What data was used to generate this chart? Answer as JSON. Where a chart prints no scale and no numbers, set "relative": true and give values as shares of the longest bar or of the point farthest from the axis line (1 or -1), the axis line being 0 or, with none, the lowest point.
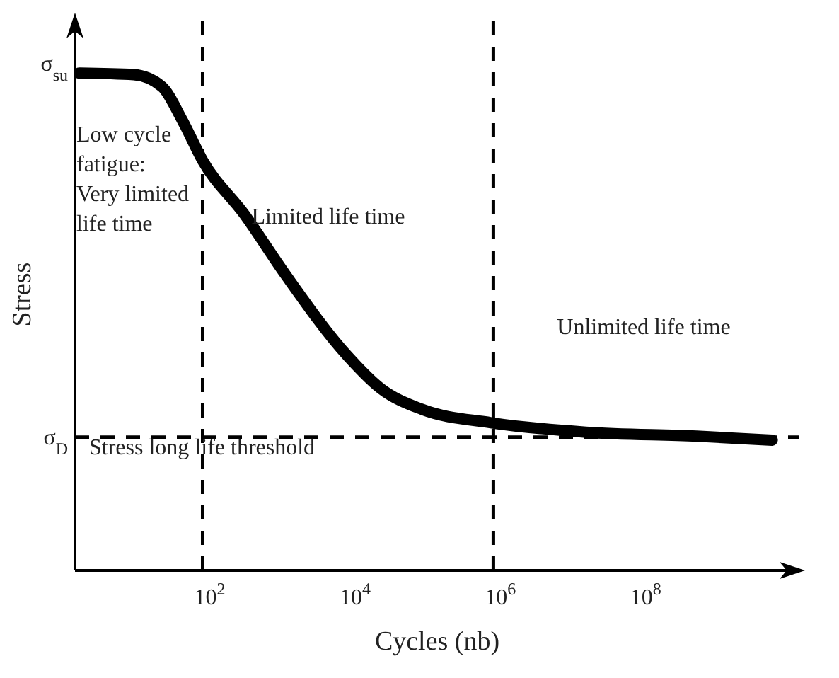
{
  "chart_data": {
    "type": "line",
    "relative": true,
    "log": "x",
    "xlabel": "Cycles (nb)",
    "ylabel": "Stress",
    "xlim": [
      1.4,
      13000000000
    ],
    "xticks": [
      {
        "value": 100,
        "label": "10$^{2}$"
      },
      {
        "value": 10000,
        "label": "10$^{4}$"
      },
      {
        "value": 1000000,
        "label": "10$^{6}$"
      },
      {
        "value": 100000000,
        "label": "10$^{8}$"
      }
    ],
    "marker": "none",
    "line_style": "solid",
    "series": [
      {
        "color": "#000000",
        "x": [
          1.6,
          9,
          22,
          42,
          80,
          300,
          1100,
          7800,
          23000,
          83000,
          740000,
          15000000,
          500000000,
          5500000000
        ],
        "values": [
          1,
          0.997,
          0.973,
          0.905,
          0.824,
          0.716,
          0.595,
          0.432,
          0.365,
          0.324,
          0.297,
          0.278,
          0.27,
          0.262
        ]
      }
    ],
    "ref_lines": [
      {
        "axis": "y",
        "value": 0.268,
        "label": "Stress long life threshold",
        "color": "#000000",
        "line_style": "dashed"
      },
      {
        "axis": "x",
        "value": 80,
        "color": "#000000",
        "line_style": "dashed"
      },
      {
        "axis": "x",
        "value": 800000,
        "color": "#000000",
        "line_style": "dashed"
      }
    ],
    "annotations": [
      "σ$_{su}$",
      "σ$_{D}$",
      "Low cycle\nfatigue:\nVery limited\nlife time",
      "Limited life time",
      "Unlimited life time"
    ]
  }
}
